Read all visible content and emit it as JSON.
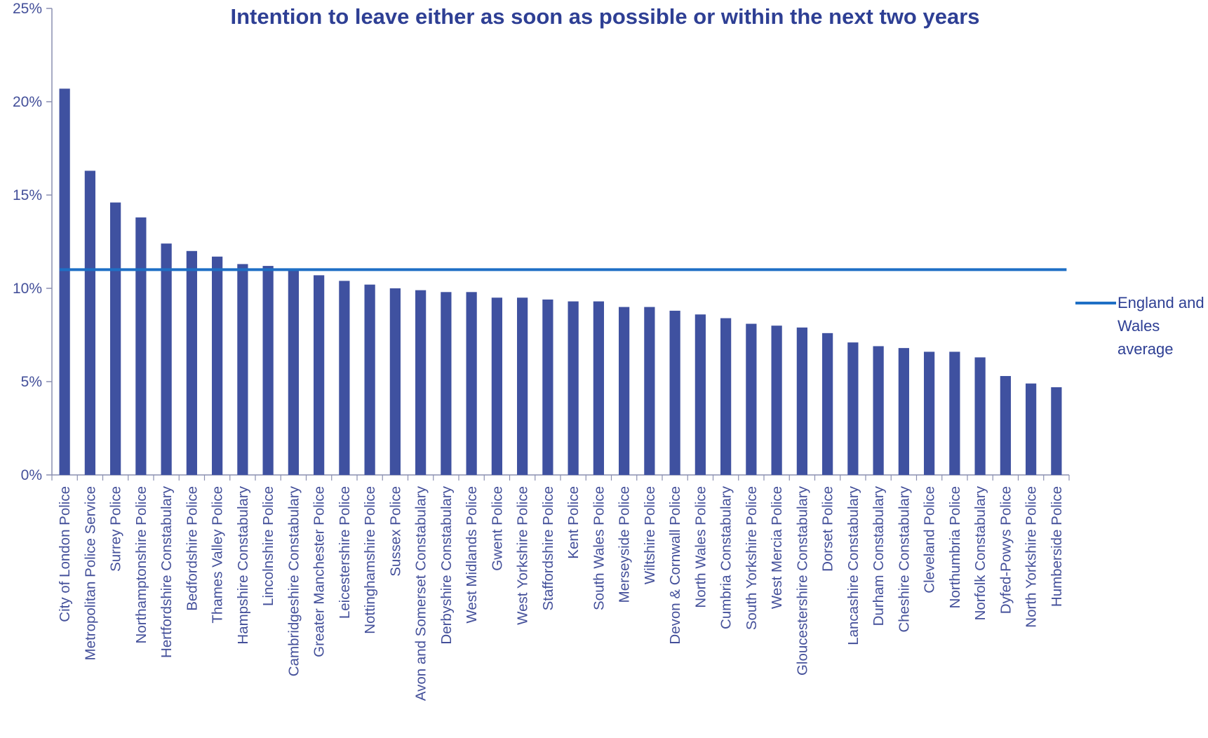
{
  "chart_data": {
    "type": "bar",
    "title": "Intention to leave either as soon as possible or within the next two years",
    "xlabel": "",
    "ylabel": "",
    "ylim": [
      0,
      25
    ],
    "y_ticks": [
      "0%",
      "5%",
      "10%",
      "15%",
      "20%",
      "25%"
    ],
    "y_tick_values": [
      0,
      5,
      10,
      15,
      20,
      25
    ],
    "bar_color": "#3F51A0",
    "categories": [
      "City of London Police",
      "Metropolitan Police Service",
      "Surrey Police",
      "Northamptonshire Police",
      "Hertfordshire Constabulary",
      "Bedfordshire Police",
      "Thames Valley Police",
      "Hampshire Constabulary",
      "Lincolnshire Police",
      "Cambridgeshire Constabulary",
      "Greater Manchester Police",
      "Leicestershire Police",
      "Nottinghamshire Police",
      "Sussex Police",
      "Avon and Somerset Constabulary",
      "Derbyshire Constabulary",
      "West Midlands Police",
      "Gwent Police",
      "West Yorkshire Police",
      "Staffordshire Police",
      "Kent Police",
      "South Wales Police",
      "Merseyside Police",
      "Wiltshire Police",
      "Devon & Cornwall Police",
      "North Wales Police",
      "Cumbria Constabulary",
      "South Yorkshire Police",
      "West Mercia Police",
      "Gloucestershire Constabulary",
      "Dorset Police",
      "Lancashire Constabulary",
      "Durham Constabulary",
      "Cheshire Constabulary",
      "Cleveland Police",
      "Northumbria Police",
      "Norfolk Constabulary",
      "Dyfed-Powys Police",
      "North Yorkshire Police",
      "Humberside Police"
    ],
    "values": [
      20.7,
      16.3,
      14.6,
      13.8,
      12.4,
      12.0,
      11.7,
      11.3,
      11.2,
      11.0,
      10.7,
      10.4,
      10.2,
      10.0,
      9.9,
      9.8,
      9.8,
      9.5,
      9.5,
      9.4,
      9.3,
      9.3,
      9.0,
      9.0,
      8.8,
      8.6,
      8.4,
      8.1,
      8.0,
      7.9,
      7.6,
      7.1,
      6.9,
      6.8,
      6.6,
      6.6,
      6.3,
      5.3,
      4.9,
      4.7
    ],
    "average_line": {
      "name": "England and Wales average",
      "value": 11.0,
      "color": "#1F6FC5"
    },
    "legend_position": "right"
  }
}
